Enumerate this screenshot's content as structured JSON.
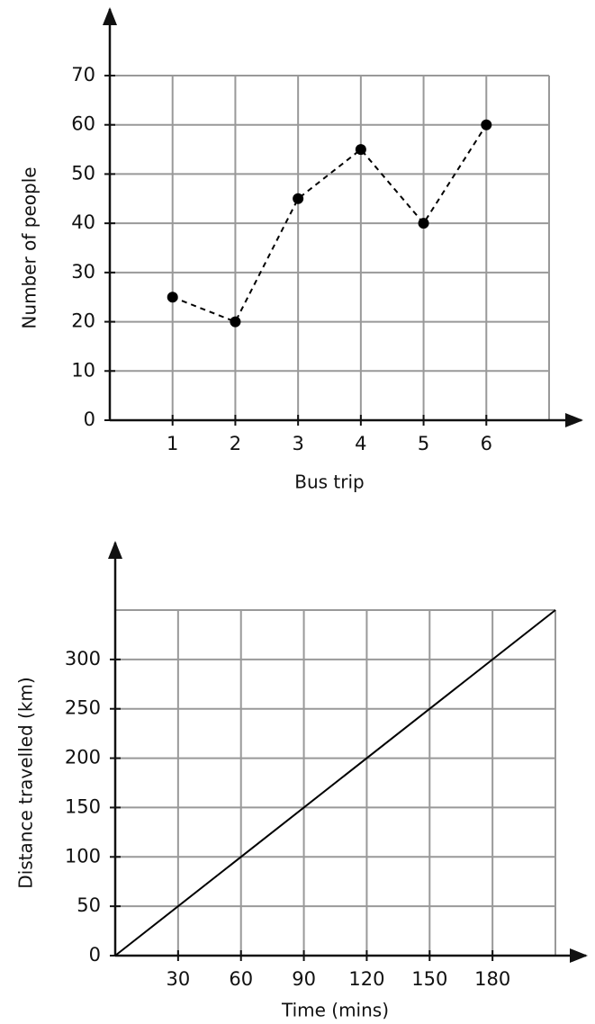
{
  "chart_data": [
    {
      "type": "line",
      "x_label": "Bus trip",
      "y_label": "Number of people",
      "x": [
        1,
        2,
        3,
        4,
        5,
        6
      ],
      "values": [
        25,
        20,
        45,
        55,
        40,
        60
      ],
      "xlim": [
        0,
        7
      ],
      "ylim": [
        0,
        70
      ],
      "xticks": [
        1,
        2,
        3,
        4,
        5,
        6
      ],
      "yticks": [
        0,
        10,
        20,
        30,
        40,
        50,
        60,
        70
      ],
      "grid": true,
      "line_style": "dashed",
      "markers": true,
      "color": "#000000"
    },
    {
      "type": "line",
      "x_label": "Time (mins)",
      "y_label": "Distance travelled (km)",
      "x": [
        0,
        210
      ],
      "values": [
        0,
        350
      ],
      "xlim": [
        0,
        210
      ],
      "ylim": [
        0,
        350
      ],
      "xticks": [
        30,
        60,
        90,
        120,
        150,
        180
      ],
      "yticks": [
        0,
        50,
        100,
        150,
        200,
        250,
        300
      ],
      "grid": true,
      "line_style": "solid",
      "markers": false,
      "color": "#000000"
    }
  ]
}
